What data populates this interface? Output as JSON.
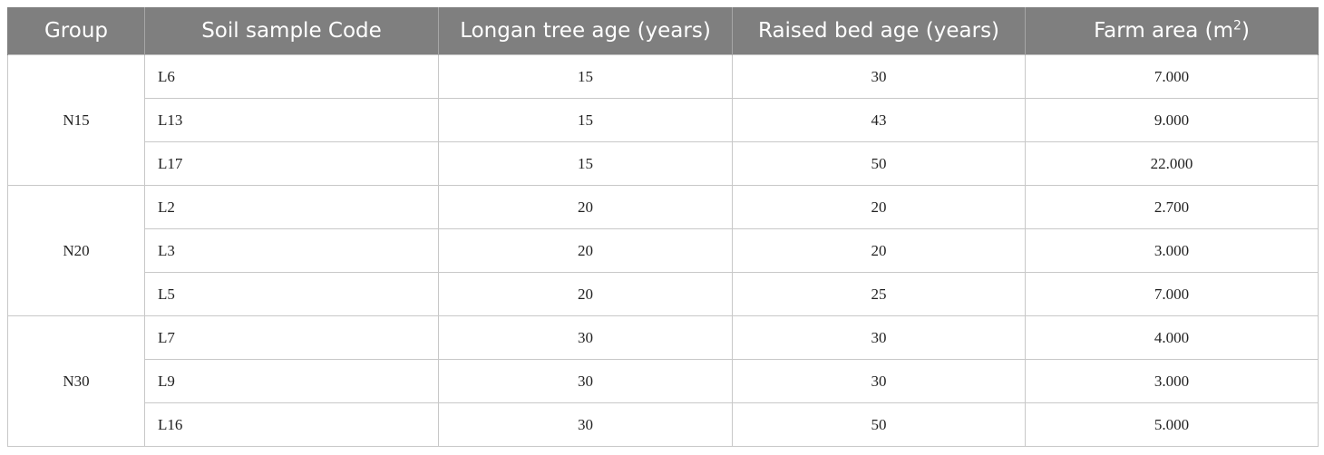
{
  "table": {
    "headers": {
      "group": "Group",
      "code": "Soil sample Code",
      "tree_age": "Longan tree age (years)",
      "bed_age": "Raised bed age (years)",
      "area": "Farm area (m",
      "area_sup": "2",
      "area_close": ")"
    },
    "groups": [
      {
        "name": "N15",
        "rows": [
          {
            "code": "L6",
            "tree_age": "15",
            "bed_age": "30",
            "area": "7.000"
          },
          {
            "code": "L13",
            "tree_age": "15",
            "bed_age": "43",
            "area": "9.000"
          },
          {
            "code": "L17",
            "tree_age": "15",
            "bed_age": "50",
            "area": "22.000"
          }
        ]
      },
      {
        "name": "N20",
        "rows": [
          {
            "code": "L2",
            "tree_age": "20",
            "bed_age": "20",
            "area": "2.700"
          },
          {
            "code": "L3",
            "tree_age": "20",
            "bed_age": "20",
            "area": "3.000"
          },
          {
            "code": "L5",
            "tree_age": "20",
            "bed_age": "25",
            "area": "7.000"
          }
        ]
      },
      {
        "name": "N30",
        "rows": [
          {
            "code": "L7",
            "tree_age": "30",
            "bed_age": "30",
            "area": "4.000"
          },
          {
            "code": "L9",
            "tree_age": "30",
            "bed_age": "30",
            "area": "3.000"
          },
          {
            "code": "L16",
            "tree_age": "30",
            "bed_age": "50",
            "area": "5.000"
          }
        ]
      }
    ]
  }
}
